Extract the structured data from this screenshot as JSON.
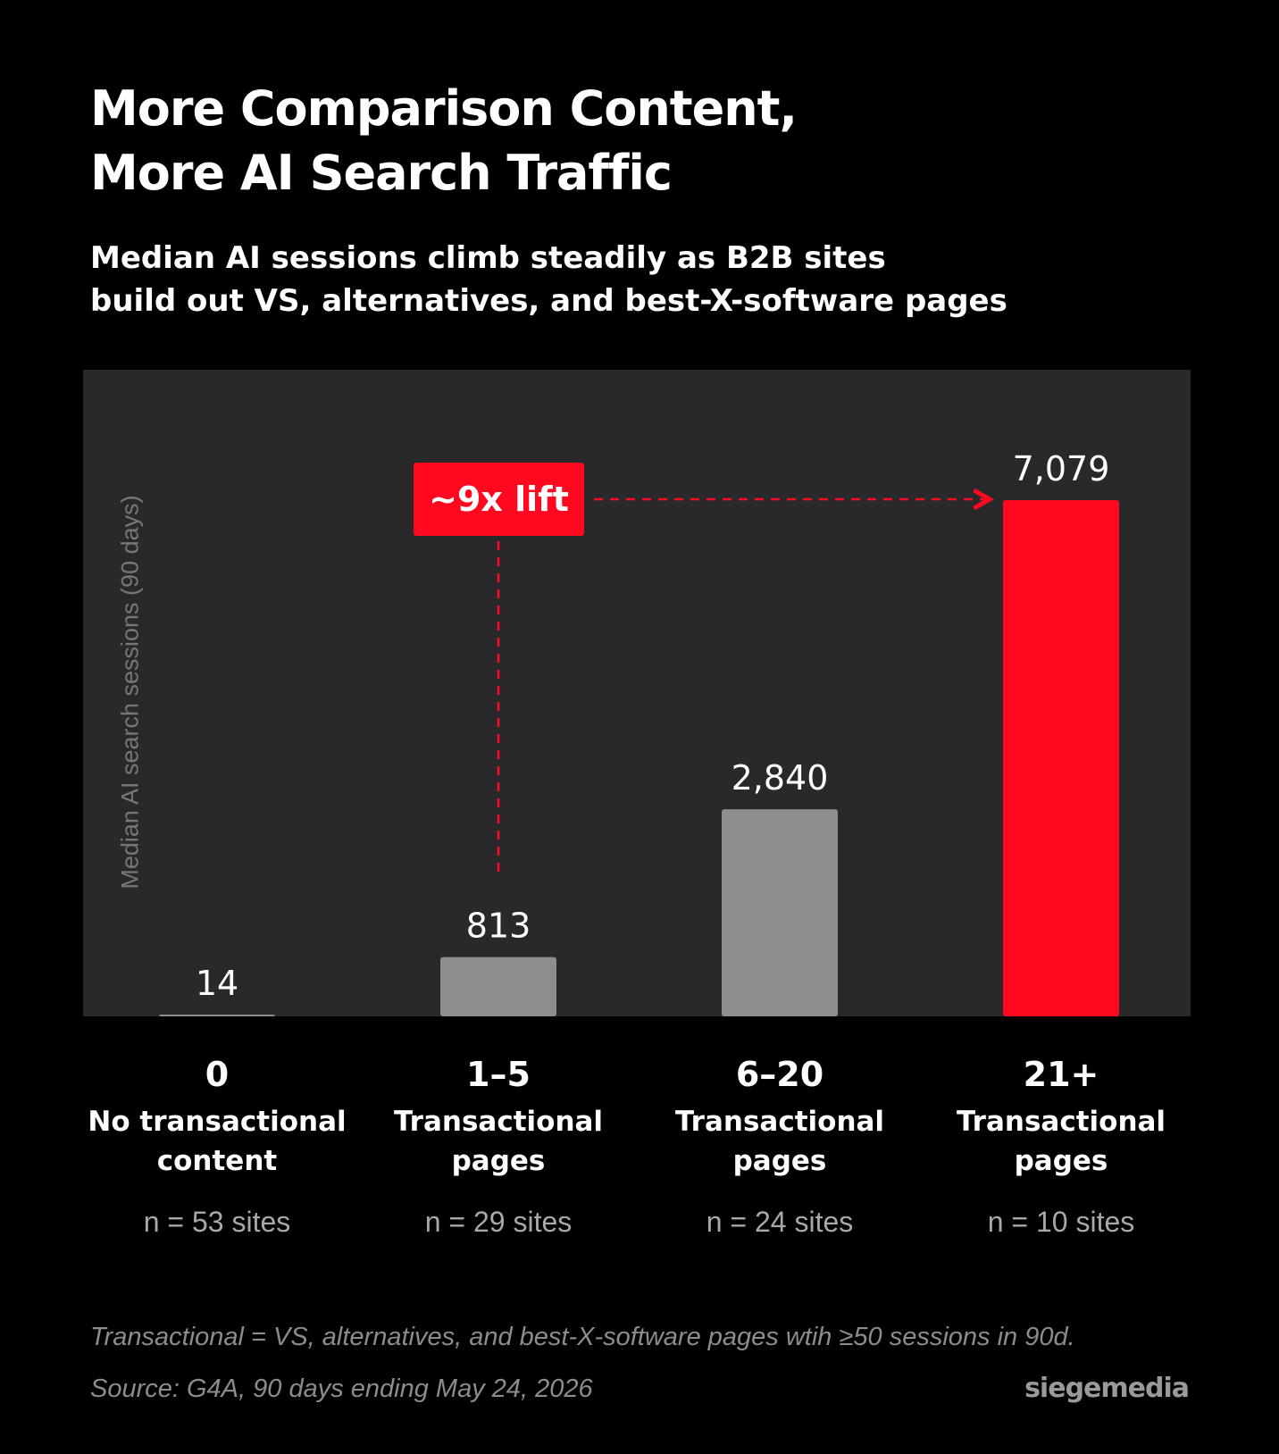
{
  "title": {
    "line1": "More Comparison Content,",
    "line2": "More AI Search Traffic"
  },
  "subtitle": {
    "line1": "Median AI sessions climb steadily as B2B sites",
    "line2": "build out VS, alternatives, and best-X-software pages"
  },
  "chart_data": {
    "type": "bar",
    "ylabel": "Median AI search sessions (90 days)",
    "ylim": [
      0,
      8000
    ],
    "grid": false,
    "categories": [
      {
        "range": "0",
        "desc_line1": "No transactional",
        "desc_line2": "content",
        "n": "n = 53 sites"
      },
      {
        "range": "1–5",
        "desc_line1": "Transactional",
        "desc_line2": "pages",
        "n": "n = 29 sites"
      },
      {
        "range": "6–20",
        "desc_line1": "Transactional",
        "desc_line2": "pages",
        "n": "n = 24 sites"
      },
      {
        "range": "21+",
        "desc_line1": "Transactional",
        "desc_line2": "pages",
        "n": "n = 10 sites"
      }
    ],
    "values": [
      14,
      813,
      2840,
      7079
    ],
    "value_labels": [
      "14",
      "813",
      "2,840",
      "7,079"
    ],
    "bar_colors": [
      "#8e8e8e",
      "#8e8e8e",
      "#8e8e8e",
      "#ff0820"
    ],
    "annotation": {
      "text": "~9x lift",
      "from_category": "1–5",
      "to_category": "21+",
      "color": "#ff0820"
    }
  },
  "footnote": "Transactional = VS, alternatives, and best-X-software pages wtih ≥50 sessions in 90d.",
  "source": "Source: G4A, 90 days ending May 24, 2026",
  "brand": "siegemedia"
}
